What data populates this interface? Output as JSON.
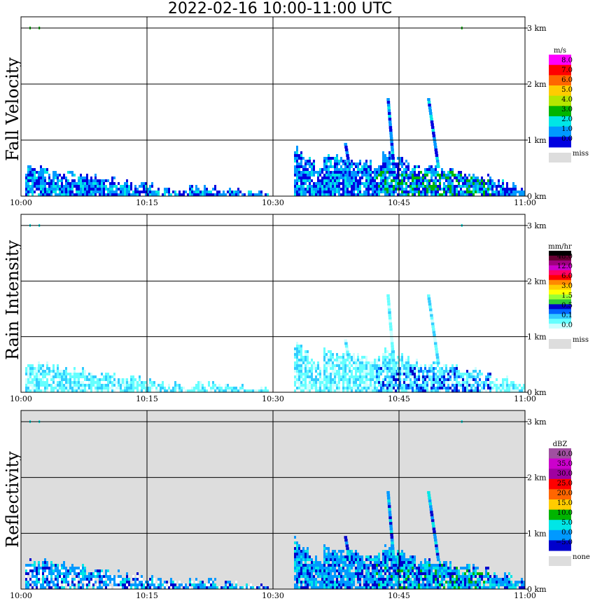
{
  "title": "2022-02-16  10:00-11:00 UTC",
  "chart_data": [
    {
      "type": "heatmap",
      "ylabel": "Fall Velocity",
      "x_ticks": [
        "10:00",
        "10:15",
        "10:30",
        "10:45",
        "11:00"
      ],
      "y_ticks": [
        "0 km",
        "1 km",
        "2 km",
        "3 km"
      ],
      "xlim": [
        "10:00",
        "11:00"
      ],
      "ylim_km": [
        0,
        3.2
      ],
      "grid": true,
      "background": "#ffffff",
      "colorbar": {
        "unit": "m/s",
        "labels": [
          "8.0",
          "7.0",
          "6.0",
          "5.0",
          "4.0",
          "3.0",
          "2.0",
          "1.0",
          "0.0"
        ],
        "colors": [
          "#ff00ff",
          "#ff0000",
          "#ff6600",
          "#ffcc00",
          "#b4e600",
          "#00b400",
          "#00e6e6",
          "#0099ff",
          "#0000e0"
        ],
        "missing_label": "miss",
        "missing_color": "#dddddd"
      }
    },
    {
      "type": "heatmap",
      "ylabel": "Rain Intensity",
      "x_ticks": [
        "10:00",
        "10:15",
        "10:30",
        "10:45",
        "11:00"
      ],
      "y_ticks": [
        "0 km",
        "1 km",
        "2 km",
        "3 km"
      ],
      "xlim": [
        "10:00",
        "11:00"
      ],
      "ylim_km": [
        0,
        3.2
      ],
      "grid": true,
      "background": "#ffffff",
      "colorbar": {
        "unit": "mm/hr",
        "labels": [
          "48.0",
          "12.0",
          "6.0",
          "3.0",
          "1.5",
          "0.5",
          "0.1",
          "0.0"
        ],
        "colors": [
          "#000000",
          "#660033",
          "#a00080",
          "#cc00cc",
          "#ff0066",
          "#ff0000",
          "#ff8800",
          "#ffcc00",
          "#ffff00",
          "#99ff33",
          "#33cc33",
          "#0000cc",
          "#0066ff",
          "#33ccff",
          "#66ffff",
          "#ccffff",
          "#ffffff"
        ],
        "missing_label": "miss",
        "missing_color": "#dddddd"
      }
    },
    {
      "type": "heatmap",
      "ylabel": "Reflectivity",
      "x_ticks": [
        "10:00",
        "10:15",
        "10:30",
        "10:45",
        "11:00"
      ],
      "y_ticks": [
        "0 km",
        "1 km",
        "2 km",
        "3 km"
      ],
      "xlim": [
        "10:00",
        "11:00"
      ],
      "ylim_km": [
        0,
        3.2
      ],
      "grid": true,
      "background": "#dddddd",
      "colorbar": {
        "unit": "dBZ",
        "labels": [
          "40.0",
          "35.0",
          "30.0",
          "25.0",
          "20.0",
          "15.0",
          "10.0",
          "5.0",
          "0.0",
          "−5.0"
        ],
        "colors": [
          "#a050a0",
          "#cc00cc",
          "#a000a0",
          "#ff0000",
          "#ff6600",
          "#ffcc00",
          "#00b400",
          "#00e6e6",
          "#0099ff",
          "#0000cc"
        ],
        "missing_label": "none",
        "missing_color": "#dddddd"
      }
    }
  ]
}
